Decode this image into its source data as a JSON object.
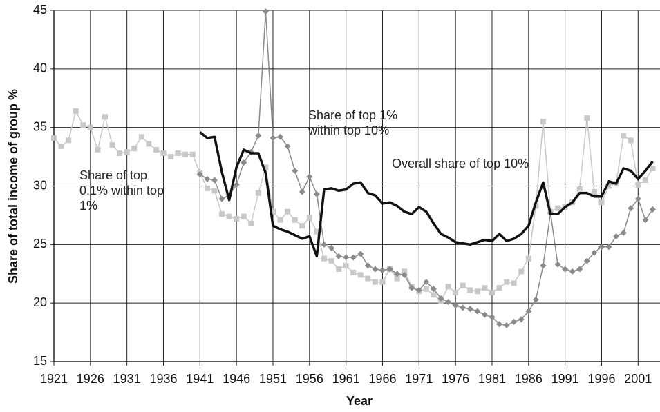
{
  "chart_data": {
    "type": "line",
    "x_label": "Year",
    "y_label": "Share of total income of group %",
    "x": [
      1921,
      1922,
      1923,
      1924,
      1925,
      1926,
      1927,
      1928,
      1929,
      1930,
      1931,
      1932,
      1933,
      1934,
      1935,
      1936,
      1937,
      1938,
      1939,
      1940,
      1941,
      1942,
      1943,
      1944,
      1945,
      1946,
      1947,
      1948,
      1949,
      1950,
      1951,
      1952,
      1953,
      1954,
      1955,
      1956,
      1957,
      1958,
      1959,
      1960,
      1961,
      1962,
      1963,
      1964,
      1965,
      1966,
      1967,
      1968,
      1969,
      1970,
      1971,
      1972,
      1973,
      1974,
      1975,
      1976,
      1977,
      1978,
      1979,
      1980,
      1981,
      1982,
      1983,
      1984,
      1985,
      1986,
      1987,
      1988,
      1989,
      1990,
      1991,
      1992,
      1993,
      1994,
      1995,
      1996,
      1997,
      1998,
      1999,
      2000,
      2001,
      2002,
      2003
    ],
    "series": [
      {
        "name": "Share of top 0.1% within top 1%",
        "color": "#c8c8c8",
        "marker": "square",
        "width": 1.5,
        "values": [
          34.1,
          33.4,
          33.9,
          36.4,
          35.2,
          35.0,
          33.1,
          35.9,
          33.5,
          32.8,
          32.9,
          33.2,
          34.2,
          33.6,
          33.1,
          32.8,
          32.5,
          32.8,
          32.7,
          32.7,
          31.1,
          29.8,
          29.6,
          27.6,
          27.4,
          27.2,
          27.4,
          26.8,
          29.4,
          31.6,
          27.8,
          27.1,
          27.8,
          27.1,
          26.6,
          27.3,
          26.1,
          23.8,
          23.6,
          22.9,
          23.2,
          22.6,
          22.4,
          22.1,
          21.8,
          21.8,
          22.9,
          22.1,
          22.7,
          21.4,
          21.0,
          21.2,
          20.7,
          20.2,
          21.4,
          20.9,
          21.5,
          21.1,
          21.0,
          21.3,
          20.9,
          21.3,
          21.8,
          21.7,
          22.7,
          23.8,
          28.3,
          35.5,
          27.8,
          28.1,
          28.2,
          28.6,
          29.8,
          35.8,
          29.5,
          28.6,
          30.0,
          30.2,
          34.3,
          33.9,
          30.1,
          30.5,
          31.5
        ]
      },
      {
        "name": "Share of top 1% within top 10%",
        "color": "#8a8a8a",
        "marker": "diamond",
        "width": 1.5,
        "values": [
          null,
          null,
          null,
          null,
          null,
          null,
          null,
          null,
          null,
          null,
          null,
          null,
          null,
          null,
          null,
          null,
          null,
          null,
          null,
          null,
          31.0,
          30.6,
          30.5,
          28.9,
          29.2,
          30.1,
          32.0,
          32.9,
          34.3,
          44.9,
          34.1,
          34.2,
          33.4,
          31.3,
          29.5,
          30.8,
          29.3,
          25.0,
          24.7,
          24.0,
          23.9,
          23.9,
          24.2,
          23.2,
          22.9,
          22.8,
          22.9,
          22.5,
          22.4,
          21.3,
          21.1,
          21.8,
          21.2,
          20.4,
          20.1,
          19.8,
          19.6,
          19.5,
          19.3,
          19.0,
          18.8,
          18.2,
          18.1,
          18.4,
          18.6,
          19.3,
          20.3,
          23.2,
          27.7,
          23.3,
          22.9,
          22.7,
          22.9,
          23.6,
          24.3,
          24.8,
          24.8,
          25.7,
          26.0,
          28.1,
          28.9,
          27.1,
          28.0
        ]
      },
      {
        "name": "Overall share of top 10%",
        "color": "#111111",
        "marker": "none",
        "width": 3.5,
        "values": [
          null,
          null,
          null,
          null,
          null,
          null,
          null,
          null,
          null,
          null,
          null,
          null,
          null,
          null,
          null,
          null,
          null,
          null,
          null,
          null,
          34.6,
          34.1,
          34.2,
          31.2,
          28.8,
          31.6,
          33.1,
          32.8,
          32.8,
          31.1,
          26.6,
          26.3,
          26.1,
          25.8,
          25.5,
          25.7,
          24.0,
          29.7,
          29.8,
          29.6,
          29.7,
          30.2,
          30.3,
          29.4,
          29.2,
          28.5,
          28.6,
          28.3,
          27.8,
          27.6,
          28.2,
          27.8,
          26.8,
          25.9,
          25.6,
          25.2,
          25.1,
          25.0,
          25.2,
          25.4,
          25.3,
          25.9,
          25.3,
          25.5,
          25.9,
          26.6,
          28.6,
          30.3,
          27.6,
          27.6,
          28.2,
          28.6,
          29.4,
          29.4,
          29.1,
          29.1,
          30.4,
          30.2,
          31.5,
          31.3,
          30.6,
          31.3,
          32.1
        ]
      }
    ],
    "xlim": [
      1921,
      2004
    ],
    "xticks": [
      1921,
      1926,
      1931,
      1936,
      1941,
      1946,
      1951,
      1956,
      1961,
      1966,
      1971,
      1976,
      1981,
      1986,
      1991,
      1996,
      2001
    ],
    "ylim": [
      15,
      45
    ],
    "yticks": [
      15,
      20,
      25,
      30,
      35,
      40,
      45
    ],
    "grid": true
  }
}
